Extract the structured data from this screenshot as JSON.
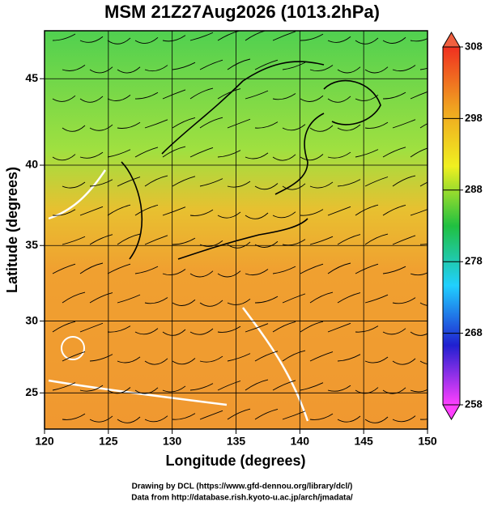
{
  "chart_data": {
    "type": "map",
    "title": "MSM 21Z27Aug2026 (1013.2hPa)",
    "x_label": "Longitude (degrees)",
    "y_label": "Latitude  (degrees)",
    "xlim": [
      120,
      150
    ],
    "xticks": [
      120,
      125,
      130,
      135,
      140,
      145,
      150
    ],
    "ylim": [
      22.4,
      47.6
    ],
    "yticks": [
      25,
      30,
      35,
      40,
      45
    ],
    "y_scale": "mercator",
    "grid": true,
    "colorbar": {
      "lim": [
        258,
        308
      ],
      "ticks": [
        258,
        268,
        278,
        288,
        298,
        308
      ],
      "colors": [
        "#ff40ff",
        "#2020d0",
        "#20d0ff",
        "#20c040",
        "#f0f020",
        "#f0a020",
        "#f03020"
      ]
    }
  },
  "credits": [
    "Drawing by DCL (https://www.gfd-dennou.org/library/dcl/)",
    "Data from http://database.rish.kyoto-u.ac.jp/arch/jmadata/"
  ]
}
